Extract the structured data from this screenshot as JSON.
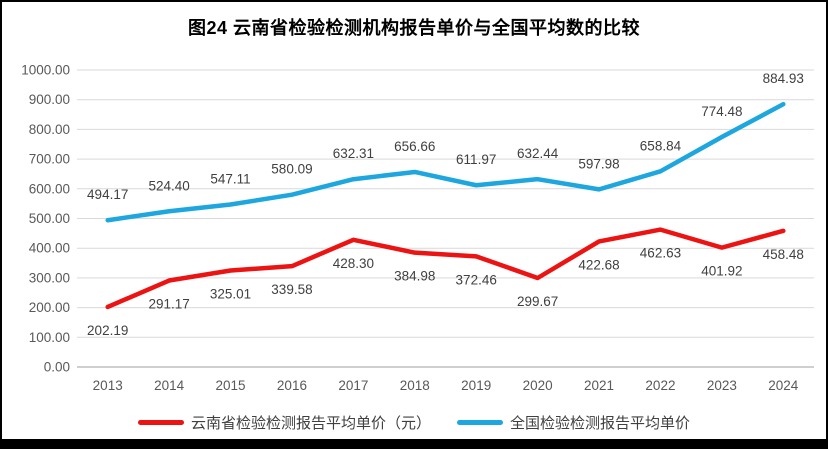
{
  "page": {
    "title": "图24  云南省检验检测机构报告单价与全国平均数的比较"
  },
  "chart_data": {
    "type": "line",
    "title": "图24  云南省检验检测机构报告单价与全国平均数的比较",
    "categories": [
      "2013",
      "2014",
      "2015",
      "2016",
      "2017",
      "2018",
      "2019",
      "2020",
      "2021",
      "2022",
      "2023",
      "2024"
    ],
    "series": [
      {
        "name": "云南省检验检测报告平均单价（元）",
        "color": "#EC1313",
        "label_position": "below",
        "values": [
          202.19,
          291.17,
          325.01,
          339.58,
          428.3,
          384.98,
          372.46,
          299.67,
          422.68,
          462.63,
          401.92,
          458.48
        ]
      },
      {
        "name": "全国检验检测报告平均单价",
        "color": "#1EA6DF",
        "label_position": "above",
        "values": [
          494.17,
          524.4,
          547.11,
          580.09,
          632.31,
          656.66,
          611.97,
          632.44,
          597.98,
          658.84,
          774.48,
          884.93
        ]
      }
    ],
    "xlabel": "",
    "ylabel": "",
    "ylim": [
      0,
      1000
    ],
    "ytick_step": 100,
    "ytick_decimals": 2,
    "grid": true,
    "legend_position": "bottom",
    "colors": {
      "gridline": "#D9D9D9",
      "axis_line": "#BFBFBF",
      "tick_label": "#595959",
      "data_label": "#404040",
      "frame": "#000000"
    }
  }
}
